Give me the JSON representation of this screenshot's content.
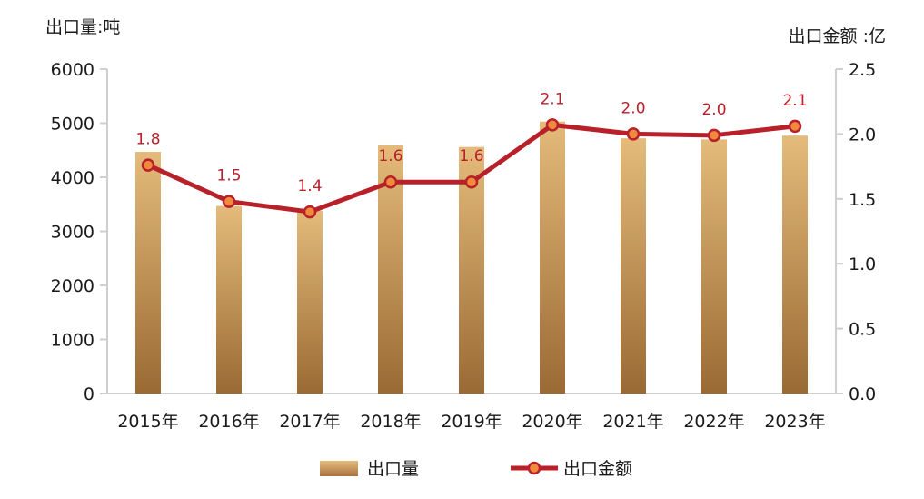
{
  "chart_data": {
    "type": "bar",
    "categories": [
      "2015年",
      "2016年",
      "2017年",
      "2018年",
      "2019年",
      "2020年",
      "2021年",
      "2022年",
      "2023年"
    ],
    "y_left_label": "出口量:吨",
    "y_right_label": "出口金额 :亿",
    "y_left_lim": [
      0,
      6000
    ],
    "y_left_ticks": [
      "0",
      "1000",
      "2000",
      "3000",
      "4000",
      "5000",
      "6000"
    ],
    "y_right_lim": [
      0,
      2.5
    ],
    "y_right_ticks": [
      "0.0",
      "0.5",
      "1.0",
      "1.5",
      "2.0",
      "2.5"
    ],
    "grid": false,
    "legend_position": "bottom-center",
    "series": [
      {
        "name": "出口量",
        "type": "bar",
        "axis": "left",
        "color": "#c4914f",
        "values": [
          4470,
          3470,
          3380,
          4590,
          4560,
          5030,
          4720,
          4700,
          4770
        ]
      },
      {
        "name": "出口金额",
        "type": "line",
        "axis": "right",
        "color": "#b8202a",
        "marker_color": "#f08a3c",
        "values": [
          1.76,
          1.48,
          1.4,
          1.63,
          1.63,
          2.07,
          2.0,
          1.99,
          2.06
        ],
        "labels": [
          "1.8",
          "1.5",
          "1.4",
          "1.6",
          "1.6",
          "2.1",
          "2.0",
          "2.0",
          "2.1"
        ]
      }
    ]
  }
}
